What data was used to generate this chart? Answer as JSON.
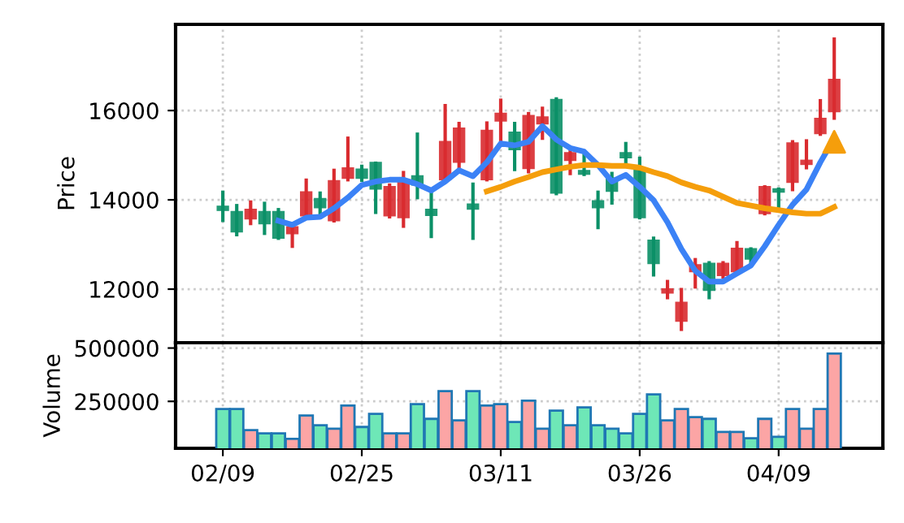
{
  "chart_data": [
    {
      "type": "candlestick",
      "ylabel": "Price",
      "tick_labels": "y",
      "grid": true,
      "ylim": [
        10800,
        17930
      ],
      "yticks": [
        12000,
        14000,
        16000
      ],
      "categories": [
        null,
        null,
        null,
        null,
        null,
        null,
        null,
        null,
        null,
        null,
        null,
        null,
        null,
        null,
        null,
        null,
        null,
        null,
        null,
        null,
        null,
        null,
        null,
        null,
        null,
        null,
        null,
        null,
        null,
        null,
        null,
        null,
        null,
        null,
        null,
        null,
        null,
        null,
        null,
        null,
        null,
        null,
        null,
        null,
        null
      ],
      "ohlc": [
        [
          13840,
          14170,
          13540,
          13780
        ],
        [
          13720,
          13870,
          13220,
          13300
        ],
        [
          13590,
          13950,
          13470,
          13770
        ],
        [
          13720,
          13920,
          13250,
          13480
        ],
        [
          13720,
          13780,
          13140,
          13160
        ],
        [
          13260,
          13410,
          12960,
          13380
        ],
        [
          13660,
          14440,
          13620,
          14160
        ],
        [
          14010,
          14150,
          13690,
          13840
        ],
        [
          13550,
          14660,
          13530,
          14410
        ],
        [
          14500,
          15380,
          14450,
          14700
        ],
        [
          14670,
          14750,
          14440,
          14500
        ],
        [
          14820,
          14820,
          13720,
          14260
        ],
        [
          13660,
          14330,
          13620,
          14280
        ],
        [
          13620,
          14610,
          13410,
          14440
        ],
        [
          14520,
          15470,
          14050,
          14350
        ],
        [
          13770,
          14170,
          13180,
          13670
        ],
        [
          14470,
          16110,
          14450,
          15290
        ],
        [
          14860,
          15710,
          14690,
          15590
        ],
        [
          13890,
          14350,
          13140,
          13810
        ],
        [
          14470,
          15720,
          14450,
          15540
        ],
        [
          15780,
          16230,
          15260,
          15920
        ],
        [
          15500,
          15710,
          14680,
          15140
        ],
        [
          14720,
          15930,
          14630,
          15870
        ],
        [
          15720,
          16050,
          15380,
          15840
        ],
        [
          16230,
          16260,
          14140,
          14170
        ],
        [
          14900,
          15140,
          14590,
          15040
        ],
        [
          14640,
          15080,
          14570,
          14590
        ],
        [
          13960,
          14170,
          13380,
          13840
        ],
        [
          14470,
          14590,
          13930,
          14210
        ],
        [
          15040,
          15260,
          14840,
          14960
        ],
        [
          14660,
          14930,
          13600,
          13620
        ],
        [
          13080,
          13140,
          12320,
          12590
        ],
        [
          11930,
          12170,
          11810,
          11990
        ],
        [
          11300,
          11990,
          11100,
          11690
        ],
        [
          12410,
          12660,
          12050,
          12530
        ],
        [
          12560,
          12590,
          11810,
          11990
        ],
        [
          12320,
          12590,
          12270,
          12560
        ],
        [
          12410,
          13040,
          12390,
          12900
        ],
        [
          12890,
          12900,
          12590,
          12690
        ],
        [
          13710,
          14290,
          13690,
          14280
        ],
        [
          14230,
          14240,
          13750,
          14190
        ],
        [
          14410,
          15300,
          14230,
          15260
        ],
        [
          14810,
          15320,
          14720,
          14870
        ],
        [
          15500,
          16220,
          15470,
          15810
        ],
        [
          15990,
          17600,
          15830,
          16680
        ]
      ],
      "colors": [
        "#0b9067",
        "#0b9067",
        "#d92b2f",
        "#0b9067",
        "#0b9067",
        "#d92b2f",
        "#d92b2f",
        "#0b9067",
        "#d92b2f",
        "#d92b2f",
        "#0b9067",
        "#0b9067",
        "#d92b2f",
        "#d92b2f",
        "#0b9067",
        "#0b9067",
        "#d92b2f",
        "#d92b2f",
        "#0b9067",
        "#d92b2f",
        "#d92b2f",
        "#0b9067",
        "#d92b2f",
        "#d92b2f",
        "#0b9067",
        "#d92b2f",
        "#0b9067",
        "#0b9067",
        "#0b9067",
        "#0b9067",
        "#0b9067",
        "#0b9067",
        "#d92b2f",
        "#d92b2f",
        "#d92b2f",
        "#0b9067",
        "#d92b2f",
        "#d92b2f",
        "#0b9067",
        "#d92b2f",
        "#0b9067",
        "#d92b2f",
        "#d92b2f",
        "#d92b2f",
        "#d92b2f"
      ],
      "series": [
        {
          "type": "line",
          "color": "#3b82f6",
          "values": [
            null,
            null,
            null,
            null,
            13530,
            13440,
            13600,
            13620,
            13810,
            14050,
            14330,
            14410,
            14450,
            14450,
            14350,
            14210,
            14410,
            14660,
            14530,
            14840,
            15260,
            15220,
            15300,
            15650,
            15350,
            15160,
            15080,
            14780,
            14410,
            14560,
            14290,
            13990,
            13500,
            12900,
            12410,
            12170,
            12170,
            12350,
            12530,
            12960,
            13440,
            13890,
            14230,
            14840,
            15380
          ]
        },
        {
          "type": "line",
          "color": "#f59e0b",
          "values": [
            null,
            null,
            null,
            null,
            null,
            null,
            null,
            null,
            null,
            null,
            null,
            null,
            null,
            null,
            null,
            null,
            null,
            null,
            null,
            14190,
            14290,
            14410,
            14510,
            14620,
            14680,
            14740,
            14780,
            14780,
            14760,
            14760,
            14720,
            14620,
            14530,
            14390,
            14290,
            14210,
            14070,
            13930,
            13870,
            13810,
            13770,
            13720,
            13690,
            13690,
            13840
          ]
        },
        {
          "type": "scatter",
          "marker": "triangle",
          "color": "#f59e0b",
          "values": [
            null,
            null,
            null,
            null,
            null,
            null,
            null,
            null,
            null,
            null,
            null,
            null,
            null,
            null,
            null,
            null,
            null,
            null,
            null,
            null,
            null,
            null,
            null,
            null,
            null,
            null,
            null,
            null,
            null,
            null,
            null,
            null,
            null,
            null,
            null,
            null,
            null,
            null,
            null,
            null,
            null,
            null,
            null,
            null,
            15300
          ]
        }
      ]
    },
    {
      "type": "bar",
      "ylabel": "Volume",
      "grid": true,
      "ylim": [
        30000,
        525000
      ],
      "yticks": [
        250000,
        500000
      ],
      "categories": [
        "02/09",
        null,
        null,
        null,
        null,
        null,
        null,
        null,
        null,
        null,
        "02/25",
        null,
        null,
        null,
        null,
        null,
        null,
        null,
        null,
        null,
        "03/11",
        null,
        null,
        null,
        null,
        null,
        null,
        null,
        null,
        null,
        "03/26",
        null,
        null,
        null,
        null,
        null,
        null,
        null,
        null,
        null,
        "04/09",
        null,
        null,
        null,
        null
      ],
      "values": [
        214000,
        214000,
        115000,
        100000,
        100000,
        74000,
        184000,
        138000,
        122000,
        230000,
        130000,
        191000,
        100000,
        100000,
        237000,
        168000,
        298000,
        161000,
        298000,
        230000,
        237000,
        153000,
        253000,
        122000,
        207000,
        138000,
        222000,
        138000,
        122000,
        100000,
        191000,
        283000,
        161000,
        214000,
        176000,
        168000,
        107000,
        107000,
        77000,
        168000,
        84000,
        214000,
        122000,
        214000,
        474000
      ],
      "colors": [
        "#6ee7b7",
        "#6ee7b7",
        "#fca5a5",
        "#6ee7b7",
        "#6ee7b7",
        "#fca5a5",
        "#fca5a5",
        "#6ee7b7",
        "#fca5a5",
        "#fca5a5",
        "#6ee7b7",
        "#6ee7b7",
        "#fca5a5",
        "#fca5a5",
        "#6ee7b7",
        "#6ee7b7",
        "#fca5a5",
        "#fca5a5",
        "#6ee7b7",
        "#fca5a5",
        "#fca5a5",
        "#6ee7b7",
        "#fca5a5",
        "#fca5a5",
        "#6ee7b7",
        "#fca5a5",
        "#6ee7b7",
        "#6ee7b7",
        "#6ee7b7",
        "#6ee7b7",
        "#6ee7b7",
        "#6ee7b7",
        "#fca5a5",
        "#fca5a5",
        "#fca5a5",
        "#6ee7b7",
        "#fca5a5",
        "#fca5a5",
        "#6ee7b7",
        "#fca5a5",
        "#6ee7b7",
        "#fca5a5",
        "#fca5a5",
        "#fca5a5",
        "#fca5a5"
      ]
    }
  ]
}
